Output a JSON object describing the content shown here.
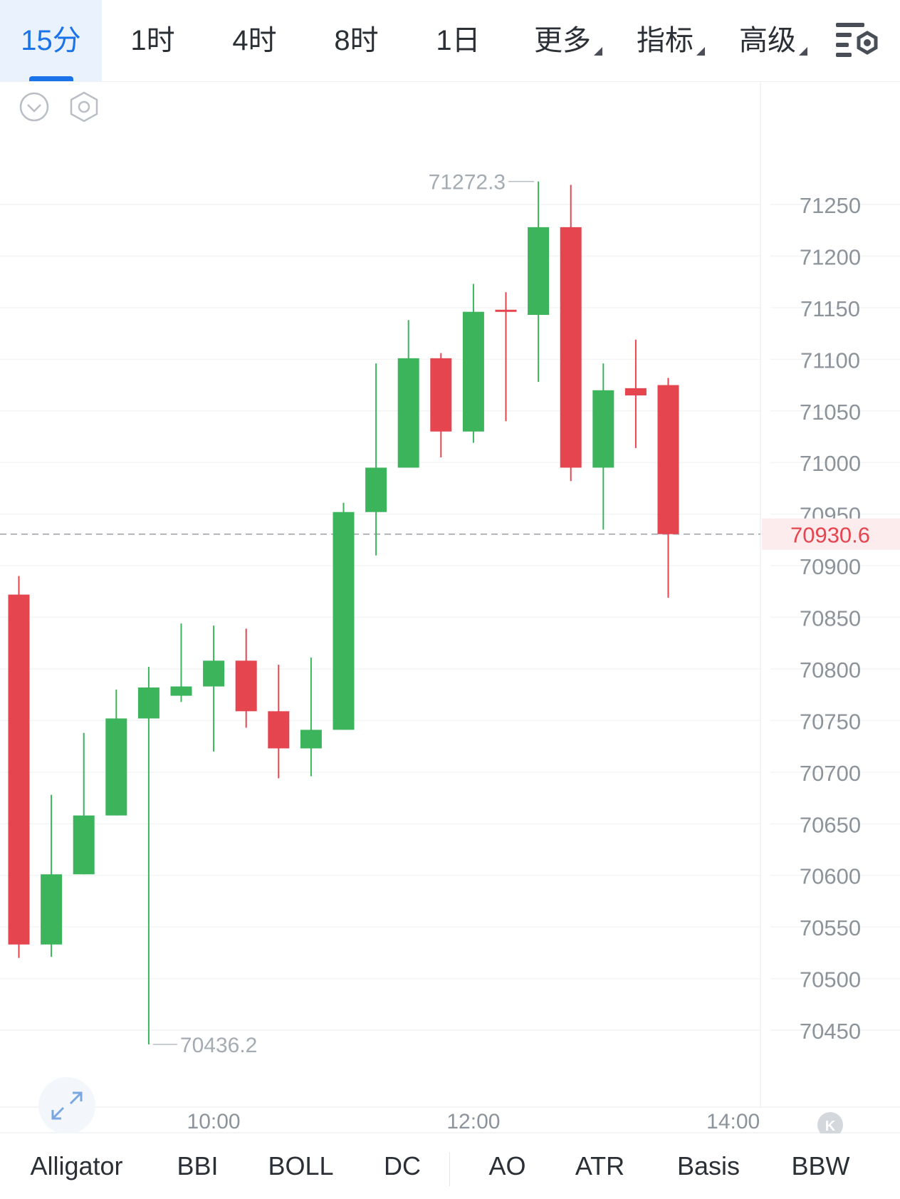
{
  "timeframe_tabs": [
    {
      "label": "15分",
      "active": true
    },
    {
      "label": "1时"
    },
    {
      "label": "4时"
    },
    {
      "label": "8时"
    },
    {
      "label": "1日"
    },
    {
      "label": "更多",
      "dropdown": true
    },
    {
      "label": "指标",
      "dropdown": true
    },
    {
      "label": "高级",
      "dropdown": true
    }
  ],
  "toolbar_icons": [
    "chart-settings-icon",
    "collapse-icon",
    "hexagon-settings-icon",
    "expand-icon",
    "k-logo-icon"
  ],
  "colors": {
    "up": "#3cb45c",
    "down": "#e5454f",
    "accent": "#1a73e8",
    "axis_text": "#8d939b",
    "price_marker": "#e5454f"
  },
  "chart_data": {
    "type": "candlestick",
    "y_ticks": [
      71250,
      71200,
      71150,
      71100,
      71050,
      71000,
      70950,
      70900,
      70850,
      70800,
      70750,
      70700,
      70650,
      70600,
      70550,
      70500,
      70450
    ],
    "y_range": [
      70420,
      71300
    ],
    "x_labels": [
      {
        "label": "10:00",
        "index": 6
      },
      {
        "label": "12:00",
        "index": 14
      },
      {
        "label": "14:00",
        "index": 22
      }
    ],
    "current_price": "70930.6",
    "current_price_value": 70930.6,
    "high_label": "71272.3",
    "high_value": 71272.3,
    "high_index": 16,
    "low_label": "70436.2",
    "low_value": 70436.2,
    "low_index": 4,
    "candles": [
      {
        "o": 70872,
        "h": 70890,
        "l": 70520,
        "c": 70533
      },
      {
        "o": 70533,
        "h": 70678,
        "l": 70521,
        "c": 70601
      },
      {
        "o": 70601,
        "h": 70738,
        "l": 70601,
        "c": 70658
      },
      {
        "o": 70658,
        "h": 70780,
        "l": 70658,
        "c": 70752
      },
      {
        "o": 70752,
        "h": 70802,
        "l": 70436.2,
        "c": 70782
      },
      {
        "o": 70774,
        "h": 70844,
        "l": 70768,
        "c": 70783
      },
      {
        "o": 70783,
        "h": 70842,
        "l": 70720,
        "c": 70808
      },
      {
        "o": 70808,
        "h": 70839,
        "l": 70743,
        "c": 70759
      },
      {
        "o": 70759,
        "h": 70804,
        "l": 70694,
        "c": 70723
      },
      {
        "o": 70723,
        "h": 70811,
        "l": 70696,
        "c": 70741
      },
      {
        "o": 70741,
        "h": 70961,
        "l": 70741,
        "c": 70952
      },
      {
        "o": 70952,
        "h": 71096,
        "l": 70910,
        "c": 70995
      },
      {
        "o": 70995,
        "h": 71138,
        "l": 70995,
        "c": 71101
      },
      {
        "o": 71101,
        "h": 71106,
        "l": 71005,
        "c": 71030
      },
      {
        "o": 71030,
        "h": 71173,
        "l": 71019,
        "c": 71146
      },
      {
        "o": 71148,
        "h": 71165,
        "l": 71040,
        "c": 71146
      },
      {
        "o": 71143,
        "h": 71272.3,
        "l": 71078,
        "c": 71228
      },
      {
        "o": 71228,
        "h": 71269,
        "l": 70982,
        "c": 70995
      },
      {
        "o": 70995,
        "h": 71096,
        "l": 70935,
        "c": 71070
      },
      {
        "o": 71072,
        "h": 71119,
        "l": 71014,
        "c": 71065
      },
      {
        "o": 71075,
        "h": 71082,
        "l": 70869,
        "c": 70930.6
      }
    ]
  },
  "indicators": [
    {
      "label": "Alligator"
    },
    {
      "label": "BBI"
    },
    {
      "label": "BOLL"
    },
    {
      "label": "DC"
    },
    {
      "label": "AO"
    },
    {
      "label": "ATR"
    },
    {
      "label": "Basis"
    },
    {
      "label": "BBW"
    }
  ]
}
